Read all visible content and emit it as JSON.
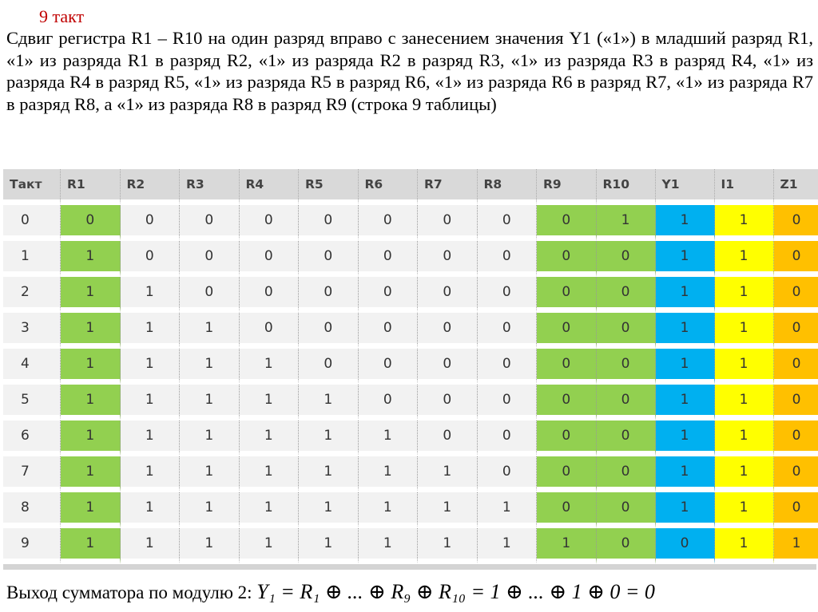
{
  "slide": {
    "title": "9 такт",
    "description": "Сдвиг регистра R1 – R10 на один разряд вправо с занесением значения Y1 («1») в младший разряд R1, «1» из разряда R1 в разряд R2,  «1» из разряда R2 в разряд R3,  «1» из разряда R3 в разряд R4, «1» из разряда R4 в разряд R5, «1» из разряда R5 в разряд R6, «1» из разряда R6 в разряд R7, «1» из разряда R7 в разряд R8, а «1» из разряда R8 в разряд R9 (строка 9 таблицы)"
  },
  "table": {
    "headers": [
      "Такт",
      "R1",
      "R2",
      "R3",
      "R4",
      "R5",
      "R6",
      "R7",
      "R8",
      "R9",
      "R10",
      "Y1",
      "I1",
      "Z1"
    ],
    "rows": [
      [
        "0",
        "0",
        "0",
        "0",
        "0",
        "0",
        "0",
        "0",
        "0",
        "0",
        "1",
        "1",
        "1",
        "0"
      ],
      [
        "1",
        "1",
        "0",
        "0",
        "0",
        "0",
        "0",
        "0",
        "0",
        "0",
        "0",
        "1",
        "1",
        "0"
      ],
      [
        "2",
        "1",
        "1",
        "0",
        "0",
        "0",
        "0",
        "0",
        "0",
        "0",
        "0",
        "1",
        "1",
        "0"
      ],
      [
        "3",
        "1",
        "1",
        "1",
        "0",
        "0",
        "0",
        "0",
        "0",
        "0",
        "0",
        "1",
        "1",
        "0"
      ],
      [
        "4",
        "1",
        "1",
        "1",
        "1",
        "0",
        "0",
        "0",
        "0",
        "0",
        "0",
        "1",
        "1",
        "0"
      ],
      [
        "5",
        "1",
        "1",
        "1",
        "1",
        "1",
        "0",
        "0",
        "0",
        "0",
        "0",
        "1",
        "1",
        "0"
      ],
      [
        "6",
        "1",
        "1",
        "1",
        "1",
        "1",
        "1",
        "0",
        "0",
        "0",
        "0",
        "1",
        "1",
        "0"
      ],
      [
        "7",
        "1",
        "1",
        "1",
        "1",
        "1",
        "1",
        "1",
        "0",
        "0",
        "0",
        "1",
        "1",
        "0"
      ],
      [
        "8",
        "1",
        "1",
        "1",
        "1",
        "1",
        "1",
        "1",
        "1",
        "0",
        "0",
        "1",
        "1",
        "0"
      ],
      [
        "9",
        "1",
        "1",
        "1",
        "1",
        "1",
        "1",
        "1",
        "1",
        "1",
        "0",
        "0",
        "1",
        "1"
      ]
    ],
    "column_colors": {
      "R1": "#92d050",
      "R9": "#92d050",
      "R10": "#92d050",
      "Y1": "#00b0f0",
      "I1": "#ffff00",
      "Z1": "#ffc000"
    }
  },
  "formula": {
    "label": "Выход сумматора по модулю 2:",
    "expression": "Y₁ = R₁ ⊕ ... ⊕ R₉ ⊕ R₁₀ = 1 ⊕ ... ⊕ 1 ⊕ 0 = 0"
  }
}
